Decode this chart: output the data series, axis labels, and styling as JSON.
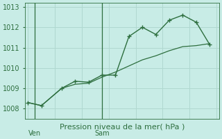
{
  "background_color": "#c8ece6",
  "grid_color": "#b0d8d0",
  "line_color": "#2d6e3e",
  "title": "Pression niveau de la mer( hPa )",
  "ylim": [
    1007.5,
    1013.2
  ],
  "yticks": [
    1008,
    1009,
    1010,
    1011,
    1012,
    1013
  ],
  "xticks": [
    0,
    2,
    4,
    6,
    8,
    10,
    12,
    14
  ],
  "x_ven_label": "Ven",
  "x_sam_label": "Sam",
  "ven_x": 0.5,
  "sam_x": 5.5,
  "line1_x": [
    0,
    1,
    2.5,
    3.5,
    4.5,
    5.5,
    6.5,
    7.5,
    8.5,
    9.5,
    10.5,
    11.5,
    12.5,
    13.5
  ],
  "line1_y": [
    1008.3,
    1008.15,
    1009.0,
    1009.35,
    1009.3,
    1009.65,
    1009.65,
    1011.55,
    1012.0,
    1011.65,
    1012.35,
    1012.6,
    1012.25,
    1011.15
  ],
  "line2_x": [
    0,
    1,
    2.5,
    3.5,
    4.5,
    5.5,
    6.5,
    7.5,
    8.5,
    9.5,
    10.5,
    11.5,
    12.5,
    13.5
  ],
  "line2_y": [
    1008.3,
    1008.15,
    1009.0,
    1009.2,
    1009.25,
    1009.55,
    1009.8,
    1010.1,
    1010.4,
    1010.6,
    1010.85,
    1011.05,
    1011.1,
    1011.2
  ],
  "ylabel_fontsize": 7,
  "xlabel_fontsize": 8,
  "tick_fontsize": 7
}
